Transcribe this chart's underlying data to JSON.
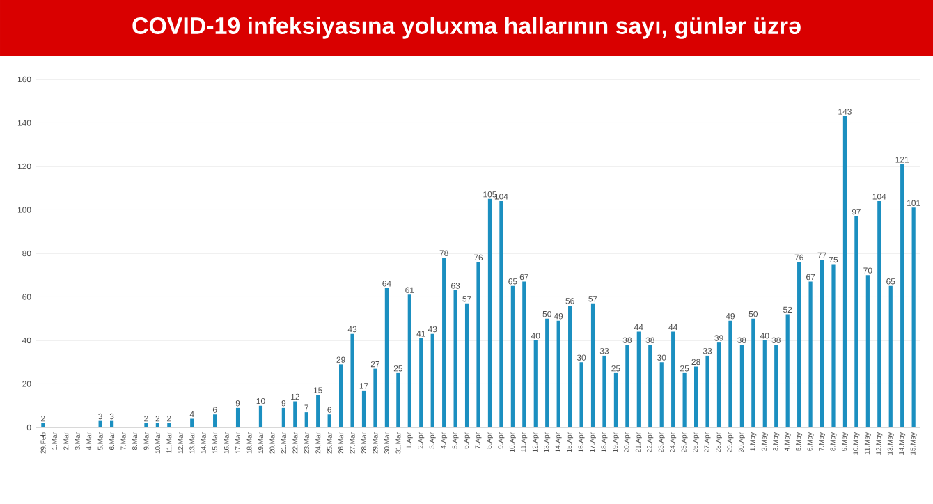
{
  "chart_data": {
    "type": "bar",
    "title": "COVID-19 infeksiyasına yoluxma hallarının sayı, günlər üzrə",
    "categories": [
      "29.Feb",
      "1.Mar",
      "2.Mar",
      "3.Mar",
      "4.Mar",
      "5.Mar",
      "6.Mar",
      "7.Mar",
      "8.Mar",
      "9.Mar",
      "10.Mar",
      "11.Mar",
      "12.Mar",
      "13.Mar",
      "14.Mar",
      "15.Mar",
      "16.Mar",
      "17.Mar",
      "18.Mar",
      "19.Mar",
      "20.Mar",
      "21.Mar",
      "22.Mar",
      "23.Mar",
      "24.Mar",
      "25.Mar",
      "26.Mar",
      "27.Mar",
      "28.Mar",
      "29.Mar",
      "30.Mar",
      "31.Mar",
      "1.Apr",
      "2.Apr",
      "3.Apr",
      "4.Apr",
      "5.Apr",
      "6.Apr",
      "7.Apr",
      "8.Apr",
      "9.Apr",
      "10.Apr",
      "11.Apr",
      "12.Apr",
      "13.Apr",
      "14.Apr",
      "15.Apr",
      "16.Apr",
      "17.Apr",
      "18.Apr",
      "19.Apr",
      "20.Apr",
      "21.Apr",
      "22.Apr",
      "23.Apr",
      "24.Apr",
      "25.Apr",
      "26.Apr",
      "27.Apr",
      "28.Apr",
      "29.Apr",
      "30.Apr",
      "1.May",
      "2.May",
      "3.May",
      "4.May",
      "5.May",
      "6.May",
      "7.May",
      "8.May",
      "9.May",
      "10.May",
      "11.May",
      "12.May",
      "13.May",
      "14.May",
      "15.May"
    ],
    "values": [
      2,
      0,
      0,
      0,
      0,
      3,
      3,
      0,
      0,
      2,
      2,
      2,
      0,
      4,
      0,
      6,
      0,
      9,
      0,
      10,
      0,
      9,
      12,
      7,
      15,
      6,
      29,
      43,
      17,
      27,
      64,
      25,
      61,
      41,
      43,
      78,
      63,
      57,
      76,
      105,
      104,
      65,
      67,
      40,
      50,
      49,
      56,
      30,
      57,
      33,
      25,
      38,
      44,
      38,
      30,
      44,
      25,
      28,
      33,
      39,
      49,
      38,
      50,
      40,
      38,
      52,
      76,
      67,
      77,
      75,
      143,
      97,
      70,
      104,
      65,
      121,
      101
    ],
    "value_labels": [
      "2",
      null,
      null,
      null,
      null,
      "3",
      "3",
      null,
      null,
      "2",
      "2",
      "2",
      null,
      "4",
      null,
      "6",
      null,
      "9",
      null,
      "10",
      null,
      "9",
      "12",
      "7",
      "15",
      "6",
      "29",
      "43",
      "17",
      "27",
      "64",
      "25",
      "61",
      "41",
      "43",
      "78",
      "63",
      "57",
      "76",
      "105",
      "104",
      "65",
      "67",
      "40",
      "50",
      "49",
      "56",
      "30",
      "57",
      "33",
      "25",
      "38",
      "44",
      "38",
      "30",
      "44",
      "25",
      "28",
      "33",
      "39",
      "49",
      "38",
      "50",
      "40",
      "38",
      "52",
      "76",
      "67",
      "77",
      "75",
      "143",
      "97",
      "70",
      "104",
      "65",
      "121",
      "101"
    ],
    "color": "#1b8fc0",
    "ylim": [
      0,
      160
    ],
    "yticks": [
      0,
      20,
      40,
      60,
      80,
      100,
      120,
      140,
      160
    ],
    "grid": "y"
  }
}
